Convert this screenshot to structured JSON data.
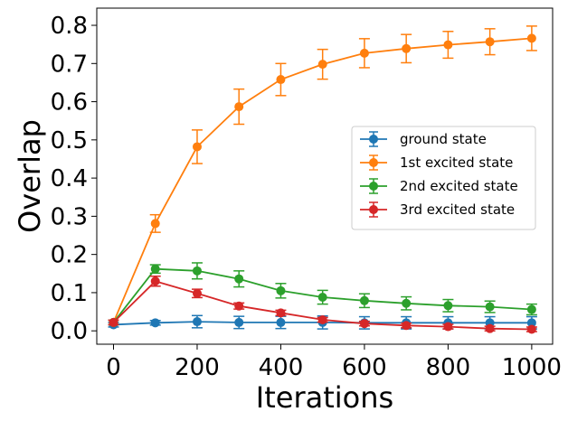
{
  "chart_data": {
    "type": "line",
    "title": "",
    "xlabel": "Iterations",
    "ylabel": "Overlap",
    "xlim": [
      -40,
      1050
    ],
    "ylim": [
      -0.035,
      0.845
    ],
    "xticks": [
      0,
      200,
      400,
      600,
      800,
      1000
    ],
    "xtick_labels": [
      "0",
      "200",
      "400",
      "600",
      "800",
      "1000"
    ],
    "yticks": [
      0.0,
      0.1,
      0.2,
      0.3,
      0.4,
      0.5,
      0.6,
      0.7,
      0.8
    ],
    "ytick_labels": [
      "0.0",
      "0.1",
      "0.2",
      "0.3",
      "0.4",
      "0.5",
      "0.6",
      "0.7",
      "0.8"
    ],
    "grid": false,
    "legend_position": "center-right",
    "x": [
      0,
      100,
      200,
      300,
      400,
      500,
      600,
      700,
      800,
      900,
      1000
    ],
    "series": [
      {
        "name": "ground state",
        "color": "#1f77b4",
        "values": [
          0.016,
          0.021,
          0.024,
          0.022,
          0.022,
          0.022,
          0.021,
          0.021,
          0.021,
          0.021,
          0.021
        ],
        "errors": [
          0.006,
          0.006,
          0.016,
          0.016,
          0.016,
          0.017,
          0.016,
          0.016,
          0.016,
          0.016,
          0.016
        ]
      },
      {
        "name": "1st excited state",
        "color": "#ff7f0e",
        "values": [
          0.022,
          0.281,
          0.482,
          0.587,
          0.658,
          0.698,
          0.727,
          0.739,
          0.749,
          0.757,
          0.766
        ],
        "errors": [
          0.006,
          0.023,
          0.044,
          0.046,
          0.042,
          0.039,
          0.038,
          0.037,
          0.035,
          0.034,
          0.032
        ]
      },
      {
        "name": "2nd excited state",
        "color": "#2ca02c",
        "values": [
          0.022,
          0.162,
          0.157,
          0.136,
          0.105,
          0.088,
          0.079,
          0.072,
          0.066,
          0.063,
          0.056
        ],
        "errors": [
          0.006,
          0.011,
          0.021,
          0.021,
          0.019,
          0.018,
          0.018,
          0.017,
          0.016,
          0.015,
          0.014
        ]
      },
      {
        "name": "3rd excited state",
        "color": "#d62728",
        "values": [
          0.022,
          0.13,
          0.098,
          0.065,
          0.047,
          0.029,
          0.019,
          0.014,
          0.011,
          0.006,
          0.004
        ],
        "errors": [
          0.006,
          0.013,
          0.011,
          0.008,
          0.007,
          0.006,
          0.006,
          0.006,
          0.006,
          0.006,
          0.006
        ]
      }
    ]
  }
}
